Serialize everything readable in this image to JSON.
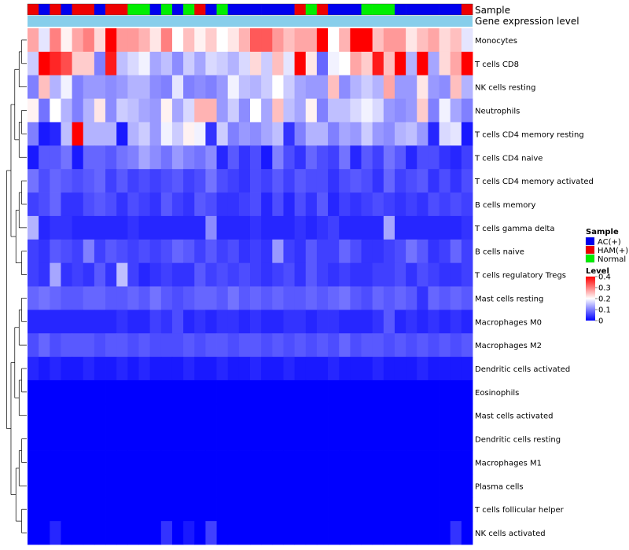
{
  "chart_data": {
    "type": "heatmap",
    "annotation_labels": [
      "Sample",
      "Gene expression level"
    ],
    "sample_legend": {
      "title": "Sample",
      "entries": [
        {
          "name": "AC(+)",
          "color": "#0000ee"
        },
        {
          "name": "HAM(+)",
          "color": "#ee0000"
        },
        {
          "name": "Normal",
          "color": "#00ee00"
        }
      ]
    },
    "level_legend": {
      "title": "Level",
      "ticks": [
        0.4,
        0.3,
        0.2,
        0.1,
        0
      ],
      "tick_labels": [
        "0.4",
        "0.3",
        "0.2",
        "0.1",
        "0"
      ],
      "range": [
        0,
        0.4
      ],
      "low_color": "#0000ff",
      "mid_color": "#ffffff",
      "high_color": "#ff0000"
    },
    "gene_expression_color": "#87ceeb",
    "sample_groups": [
      "HAM(+)",
      "AC(+)",
      "HAM(+)",
      "AC(+)",
      "HAM(+)",
      "HAM(+)",
      "AC(+)",
      "HAM(+)",
      "HAM(+)",
      "Normal",
      "Normal",
      "AC(+)",
      "Normal",
      "AC(+)",
      "Normal",
      "HAM(+)",
      "AC(+)",
      "Normal",
      "AC(+)",
      "AC(+)",
      "AC(+)",
      "AC(+)",
      "AC(+)",
      "AC(+)",
      "HAM(+)",
      "Normal",
      "HAM(+)",
      "AC(+)",
      "AC(+)",
      "AC(+)",
      "Normal",
      "Normal",
      "Normal",
      "AC(+)",
      "AC(+)",
      "AC(+)",
      "AC(+)",
      "AC(+)",
      "AC(+)",
      "HAM(+)"
    ],
    "rows": [
      "Monocytes",
      "T cells CD8",
      "NK cells resting",
      "Neutrophils",
      "T cells CD4 memory resting",
      "T cells CD4 naive",
      "T cells CD4 memory activated",
      "B cells memory",
      "T cells gamma delta",
      "B cells naive",
      "T cells regulatory  Tregs",
      "Mast cells resting",
      "Macrophages M0",
      "Macrophages M2",
      "Dendritic cells activated",
      "Eosinophils",
      "Mast cells activated",
      "Dendritic cells resting",
      "Macrophages M1",
      "Plasma cells",
      "T cells follicular helper",
      "NK cells activated"
    ],
    "values": [
      [
        0.27,
        0.18,
        0.3,
        0.21,
        0.27,
        0.3,
        0.23,
        0.4,
        0.28,
        0.28,
        0.26,
        0.22,
        0.3,
        0.2,
        0.25,
        0.21,
        0.24,
        0.2,
        0.22,
        0.26,
        0.33,
        0.33,
        0.28,
        0.25,
        0.27,
        0.27,
        0.4,
        0.2,
        0.26,
        0.4,
        0.4,
        0.25,
        0.28,
        0.28,
        0.22,
        0.25,
        0.27,
        0.23,
        0.25,
        0.18
      ],
      [
        0.16,
        0.4,
        0.37,
        0.34,
        0.24,
        0.24,
        0.1,
        0.38,
        0.15,
        0.17,
        0.19,
        0.13,
        0.15,
        0.11,
        0.16,
        0.13,
        0.17,
        0.16,
        0.14,
        0.17,
        0.23,
        0.16,
        0.25,
        0.18,
        0.4,
        0.22,
        0.08,
        0.19,
        0.2,
        0.27,
        0.24,
        0.38,
        0.25,
        0.4,
        0.14,
        0.4,
        0.13,
        0.23,
        0.27,
        0.4
      ],
      [
        0.1,
        0.25,
        0.14,
        0.19,
        0.1,
        0.12,
        0.12,
        0.11,
        0.12,
        0.14,
        0.14,
        0.11,
        0.1,
        0.18,
        0.1,
        0.11,
        0.1,
        0.12,
        0.19,
        0.15,
        0.14,
        0.16,
        0.2,
        0.16,
        0.13,
        0.12,
        0.12,
        0.25,
        0.11,
        0.14,
        0.16,
        0.14,
        0.27,
        0.12,
        0.12,
        0.22,
        0.12,
        0.11,
        0.25,
        0.14
      ],
      [
        0.21,
        0.09,
        0.2,
        0.14,
        0.1,
        0.14,
        0.22,
        0.11,
        0.16,
        0.15,
        0.13,
        0.12,
        0.21,
        0.13,
        0.17,
        0.26,
        0.26,
        0.12,
        0.16,
        0.11,
        0.2,
        0.13,
        0.25,
        0.15,
        0.13,
        0.21,
        0.1,
        0.15,
        0.15,
        0.17,
        0.19,
        0.17,
        0.12,
        0.11,
        0.12,
        0.24,
        0.1,
        0.19,
        0.13,
        0.1
      ],
      [
        0.1,
        0.02,
        0.03,
        0.15,
        0.4,
        0.14,
        0.14,
        0.14,
        0.02,
        0.14,
        0.16,
        0.12,
        0.19,
        0.16,
        0.21,
        0.19,
        0.04,
        0.16,
        0.1,
        0.12,
        0.11,
        0.13,
        0.15,
        0.04,
        0.1,
        0.14,
        0.14,
        0.1,
        0.13,
        0.12,
        0.16,
        0.12,
        0.11,
        0.14,
        0.15,
        0.12,
        0.03,
        0.17,
        0.18,
        0.02
      ],
      [
        0.02,
        0.07,
        0.07,
        0.09,
        0.02,
        0.08,
        0.08,
        0.07,
        0.09,
        0.1,
        0.13,
        0.11,
        0.09,
        0.12,
        0.1,
        0.09,
        0.11,
        0.03,
        0.07,
        0.04,
        0.06,
        0.02,
        0.1,
        0.06,
        0.04,
        0.08,
        0.06,
        0.05,
        0.09,
        0.03,
        0.07,
        0.05,
        0.09,
        0.07,
        0.03,
        0.06,
        0.06,
        0.04,
        0.03,
        0.05
      ],
      [
        0.09,
        0.06,
        0.08,
        0.07,
        0.06,
        0.07,
        0.08,
        0.05,
        0.07,
        0.05,
        0.06,
        0.05,
        0.06,
        0.07,
        0.05,
        0.06,
        0.09,
        0.06,
        0.05,
        0.04,
        0.06,
        0.05,
        0.07,
        0.05,
        0.07,
        0.06,
        0.06,
        0.04,
        0.06,
        0.07,
        0.06,
        0.04,
        0.08,
        0.05,
        0.06,
        0.07,
        0.04,
        0.06,
        0.04,
        0.06
      ],
      [
        0.05,
        0.06,
        0.08,
        0.04,
        0.04,
        0.06,
        0.07,
        0.06,
        0.04,
        0.06,
        0.05,
        0.04,
        0.07,
        0.05,
        0.04,
        0.07,
        0.06,
        0.04,
        0.04,
        0.05,
        0.06,
        0.03,
        0.06,
        0.03,
        0.06,
        0.04,
        0.07,
        0.03,
        0.05,
        0.04,
        0.05,
        0.06,
        0.05,
        0.04,
        0.05,
        0.04,
        0.06,
        0.05,
        0.06,
        0.05
      ],
      [
        0.14,
        0.03,
        0.04,
        0.04,
        0.03,
        0.03,
        0.03,
        0.03,
        0.03,
        0.04,
        0.03,
        0.03,
        0.03,
        0.03,
        0.03,
        0.03,
        0.11,
        0.03,
        0.03,
        0.03,
        0.04,
        0.03,
        0.03,
        0.03,
        0.04,
        0.03,
        0.04,
        0.05,
        0.03,
        0.03,
        0.03,
        0.03,
        0.13,
        0.03,
        0.03,
        0.03,
        0.03,
        0.03,
        0.03,
        0.04
      ],
      [
        0.05,
        0.04,
        0.07,
        0.06,
        0.05,
        0.1,
        0.05,
        0.07,
        0.06,
        0.05,
        0.06,
        0.05,
        0.06,
        0.08,
        0.07,
        0.05,
        0.07,
        0.05,
        0.06,
        0.04,
        0.05,
        0.04,
        0.12,
        0.05,
        0.04,
        0.07,
        0.05,
        0.05,
        0.08,
        0.06,
        0.04,
        0.04,
        0.05,
        0.06,
        0.09,
        0.07,
        0.04,
        0.05,
        0.08,
        0.05
      ],
      [
        0.05,
        0.04,
        0.13,
        0.04,
        0.05,
        0.04,
        0.07,
        0.04,
        0.15,
        0.05,
        0.03,
        0.04,
        0.05,
        0.04,
        0.04,
        0.07,
        0.05,
        0.06,
        0.05,
        0.06,
        0.05,
        0.04,
        0.05,
        0.06,
        0.04,
        0.07,
        0.05,
        0.04,
        0.05,
        0.04,
        0.04,
        0.05,
        0.05,
        0.06,
        0.04,
        0.06,
        0.05,
        0.04,
        0.04,
        0.05
      ],
      [
        0.08,
        0.09,
        0.08,
        0.07,
        0.07,
        0.08,
        0.08,
        0.07,
        0.07,
        0.08,
        0.07,
        0.09,
        0.07,
        0.06,
        0.07,
        0.08,
        0.08,
        0.07,
        0.09,
        0.07,
        0.08,
        0.07,
        0.08,
        0.07,
        0.07,
        0.08,
        0.07,
        0.08,
        0.09,
        0.07,
        0.06,
        0.08,
        0.07,
        0.08,
        0.07,
        0.04,
        0.08,
        0.07,
        0.08,
        0.07
      ],
      [
        0.03,
        0.03,
        0.03,
        0.03,
        0.03,
        0.03,
        0.03,
        0.03,
        0.04,
        0.03,
        0.03,
        0.05,
        0.04,
        0.06,
        0.03,
        0.04,
        0.03,
        0.04,
        0.04,
        0.03,
        0.04,
        0.03,
        0.03,
        0.04,
        0.04,
        0.03,
        0.04,
        0.04,
        0.03,
        0.03,
        0.03,
        0.04,
        0.07,
        0.03,
        0.04,
        0.03,
        0.04,
        0.03,
        0.04,
        0.03
      ],
      [
        0.06,
        0.08,
        0.06,
        0.07,
        0.07,
        0.07,
        0.06,
        0.07,
        0.07,
        0.06,
        0.07,
        0.06,
        0.06,
        0.06,
        0.07,
        0.06,
        0.07,
        0.07,
        0.06,
        0.07,
        0.07,
        0.06,
        0.07,
        0.06,
        0.07,
        0.06,
        0.07,
        0.06,
        0.08,
        0.06,
        0.07,
        0.07,
        0.06,
        0.07,
        0.06,
        0.07,
        0.06,
        0.07,
        0.06,
        0.07
      ],
      [
        0.03,
        0.02,
        0.03,
        0.02,
        0.02,
        0.03,
        0.02,
        0.02,
        0.03,
        0.02,
        0.03,
        0.02,
        0.02,
        0.02,
        0.03,
        0.02,
        0.02,
        0.03,
        0.02,
        0.02,
        0.03,
        0.02,
        0.02,
        0.03,
        0.02,
        0.02,
        0.02,
        0.03,
        0.02,
        0.02,
        0.02,
        0.03,
        0.02,
        0.02,
        0.02,
        0.03,
        0.02,
        0.02,
        0.02,
        0.02
      ],
      [
        0,
        0,
        0,
        0,
        0,
        0,
        0,
        0,
        0,
        0,
        0,
        0,
        0,
        0,
        0,
        0,
        0,
        0,
        0,
        0,
        0,
        0,
        0,
        0,
        0,
        0,
        0,
        0,
        0,
        0,
        0,
        0,
        0,
        0,
        0,
        0,
        0,
        0,
        0,
        0
      ],
      [
        0,
        0,
        0,
        0,
        0,
        0,
        0,
        0,
        0,
        0,
        0,
        0,
        0,
        0,
        0,
        0,
        0,
        0,
        0,
        0,
        0,
        0,
        0,
        0,
        0,
        0,
        0,
        0,
        0,
        0,
        0,
        0,
        0,
        0,
        0,
        0,
        0,
        0,
        0,
        0
      ],
      [
        0,
        0,
        0,
        0,
        0,
        0,
        0,
        0,
        0,
        0,
        0,
        0,
        0,
        0,
        0,
        0,
        0,
        0,
        0,
        0,
        0,
        0,
        0,
        0,
        0,
        0,
        0,
        0,
        0,
        0,
        0,
        0,
        0,
        0,
        0,
        0,
        0,
        0,
        0,
        0
      ],
      [
        0,
        0,
        0,
        0,
        0,
        0,
        0,
        0,
        0,
        0,
        0,
        0,
        0,
        0,
        0,
        0,
        0,
        0,
        0,
        0,
        0,
        0,
        0,
        0,
        0,
        0,
        0,
        0,
        0,
        0,
        0,
        0,
        0,
        0,
        0,
        0,
        0,
        0,
        0,
        0
      ],
      [
        0,
        0,
        0,
        0,
        0,
        0,
        0,
        0,
        0,
        0,
        0,
        0,
        0,
        0,
        0,
        0,
        0,
        0,
        0,
        0,
        0,
        0,
        0,
        0,
        0,
        0,
        0,
        0,
        0,
        0,
        0,
        0,
        0,
        0,
        0,
        0,
        0,
        0,
        0,
        0
      ],
      [
        0,
        0,
        0,
        0,
        0,
        0,
        0,
        0,
        0,
        0,
        0,
        0,
        0,
        0,
        0,
        0,
        0,
        0,
        0,
        0,
        0,
        0,
        0,
        0,
        0,
        0,
        0,
        0,
        0,
        0,
        0,
        0,
        0,
        0,
        0,
        0,
        0,
        0,
        0,
        0
      ],
      [
        0,
        0,
        0.03,
        0,
        0,
        0,
        0,
        0,
        0,
        0,
        0,
        0,
        0.04,
        0,
        0.02,
        0,
        0.05,
        0,
        0,
        0,
        0,
        0,
        0,
        0,
        0,
        0,
        0,
        0,
        0,
        0,
        0,
        0,
        0,
        0,
        0,
        0,
        0,
        0,
        0.04,
        0
      ]
    ]
  }
}
